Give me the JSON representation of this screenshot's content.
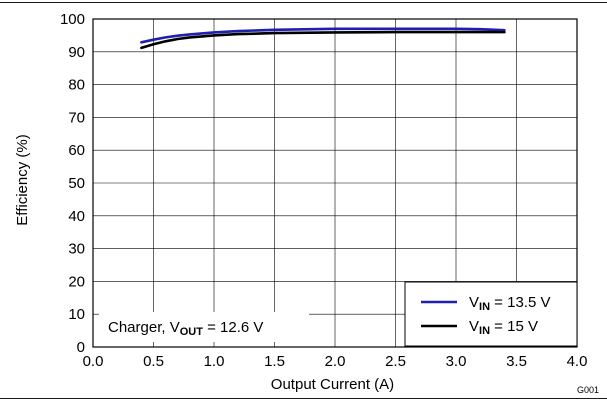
{
  "chart_data": {
    "type": "line",
    "xlabel": "Output Current (A)",
    "ylabel": "Efficiency (%)",
    "xlim": [
      0.0,
      4.0
    ],
    "ylim": [
      0,
      100
    ],
    "x_ticks": [
      "0.0",
      "0.5",
      "1.0",
      "1.5",
      "2.0",
      "2.5",
      "3.0",
      "3.5",
      "4.0"
    ],
    "y_ticks": [
      "0",
      "10",
      "20",
      "30",
      "40",
      "50",
      "60",
      "70",
      "80",
      "90",
      "100"
    ],
    "grid": true,
    "figure_id": "G001",
    "annotation": {
      "text": "Charger, V",
      "sub": "OUT",
      "suffix": " = 12.6 V"
    },
    "legend_position": "bottom-right",
    "series": [
      {
        "label_main": "V",
        "label_sub": "IN",
        "label_suffix": " = 13.5 V",
        "color": "#1f1fb0",
        "x": [
          0.4,
          0.5,
          0.6,
          0.7,
          0.8,
          1.0,
          1.2,
          1.5,
          2.0,
          2.5,
          3.0,
          3.2,
          3.4
        ],
        "y": [
          92.9,
          93.7,
          94.4,
          94.9,
          95.3,
          95.9,
          96.3,
          96.7,
          97.0,
          97.0,
          97.0,
          96.9,
          96.6
        ]
      },
      {
        "label_main": "V",
        "label_sub": "IN",
        "label_suffix": " = 15 V",
        "color": "#000000",
        "x": [
          0.4,
          0.5,
          0.6,
          0.7,
          0.8,
          1.0,
          1.2,
          1.5,
          2.0,
          2.5,
          3.0,
          3.2,
          3.4
        ],
        "y": [
          91.2,
          92.3,
          93.2,
          93.9,
          94.4,
          95.0,
          95.4,
          95.7,
          95.9,
          96.0,
          96.0,
          96.0,
          96.0
        ]
      }
    ]
  }
}
